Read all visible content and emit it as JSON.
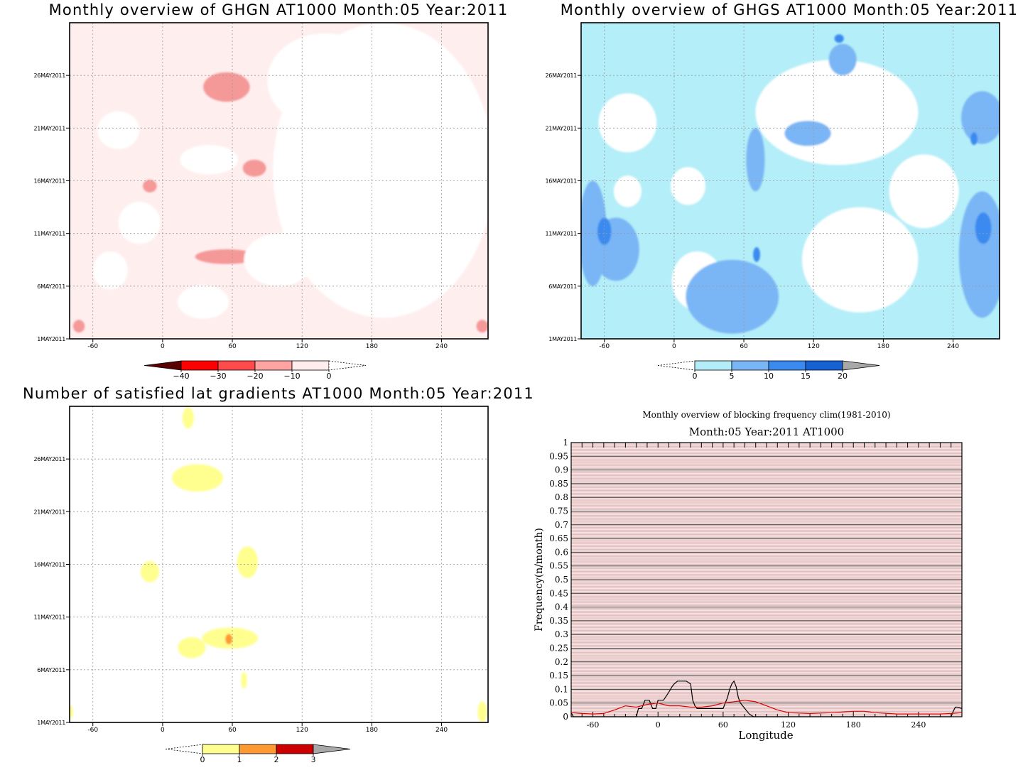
{
  "chart_data": [
    {
      "type": "heatmap",
      "title": "Monthly overview of GHGN AT1000 Month:05 Year:2011",
      "x_ticks": [
        "-60",
        "0",
        "60",
        "120",
        "180",
        "240"
      ],
      "x_tick_values": [
        -60,
        0,
        60,
        120,
        180,
        240
      ],
      "xlim": [
        -80,
        280
      ],
      "y_ticks": [
        "1MAY2011",
        "6MAY2011",
        "11MAY2011",
        "16MAY2011",
        "21MAY2011",
        "26MAY2011"
      ],
      "y_tick_days": [
        1,
        6,
        11,
        16,
        21,
        26
      ],
      "ylim": [
        1,
        31
      ],
      "grid": true,
      "colorbar": {
        "labels": [
          "-40",
          "-30",
          "-20",
          "-10",
          "0"
        ],
        "colors": [
          "#5a0000",
          "#ff0000",
          "#ff4b4b",
          "#ffa3a3",
          "#ffeded",
          "#ffffff"
        ]
      },
      "background": "#ffeeee",
      "blobs": [
        {
          "lon": 55,
          "day": 24.9,
          "rlon": 20,
          "rday": 1.4,
          "color": "#f59898"
        },
        {
          "lon": 79,
          "day": 17.2,
          "rlon": 10,
          "rday": 0.8,
          "color": "#f59898"
        },
        {
          "lon": -11,
          "day": 15.5,
          "rlon": 6,
          "rday": 0.6,
          "color": "#f59898"
        },
        {
          "lon": 55,
          "day": 8.8,
          "rlon": 27,
          "rday": 0.7,
          "color": "#f59898"
        },
        {
          "lon": -72,
          "day": 2.2,
          "rlon": 5,
          "rday": 0.6,
          "color": "#f59898"
        },
        {
          "lon": 275,
          "day": 2.2,
          "rlon": 5,
          "rday": 0.6,
          "color": "#f59898"
        },
        {
          "lon": -38,
          "day": 20.8,
          "rlon": 18,
          "rday": 1.8,
          "color": "#ffffff"
        },
        {
          "lon": 40,
          "day": 18.0,
          "rlon": 25,
          "rday": 1.4,
          "color": "#ffffff"
        },
        {
          "lon": -20,
          "day": 12.0,
          "rlon": 18,
          "rday": 2.0,
          "color": "#ffffff"
        },
        {
          "lon": 190,
          "day": 17.0,
          "rlon": 95,
          "rday": 14.0,
          "color": "#ffffff"
        },
        {
          "lon": 140,
          "day": 25.5,
          "rlon": 50,
          "rday": 4.5,
          "color": "#ffffff"
        },
        {
          "lon": 35,
          "day": 4.5,
          "rlon": 22,
          "rday": 1.6,
          "color": "#ffffff"
        },
        {
          "lon": -45,
          "day": 7.5,
          "rlon": 15,
          "rday": 1.8,
          "color": "#ffffff"
        },
        {
          "lon": 100,
          "day": 8.5,
          "rlon": 30,
          "rday": 2.5,
          "color": "#ffffff"
        }
      ]
    },
    {
      "type": "heatmap",
      "title": "Monthly overview of GHGS AT1000 Month:05 Year:2011",
      "x_ticks": [
        "-60",
        "0",
        "60",
        "120",
        "180",
        "240"
      ],
      "x_tick_values": [
        -60,
        0,
        60,
        120,
        180,
        240
      ],
      "xlim": [
        -80,
        280
      ],
      "y_ticks": [
        "1MAY2011",
        "6MAY2011",
        "11MAY2011",
        "16MAY2011",
        "21MAY2011",
        "26MAY2011"
      ],
      "y_tick_days": [
        1,
        6,
        11,
        16,
        21,
        26
      ],
      "ylim": [
        1,
        31
      ],
      "grid": true,
      "colorbar": {
        "labels": [
          "0",
          "5",
          "10",
          "15",
          "20"
        ],
        "colors": [
          "#ffffff",
          "#b3eef8",
          "#7ab6f5",
          "#3a8af0",
          "#1661d4",
          "#a8a8a8"
        ]
      },
      "background": "#b4eef8",
      "blobs": [
        {
          "lon": -40,
          "day": 21.5,
          "rlon": 25,
          "rday": 2.8,
          "color": "#ffffff"
        },
        {
          "lon": 12,
          "day": 15.5,
          "rlon": 15,
          "rday": 1.8,
          "color": "#ffffff"
        },
        {
          "lon": -40,
          "day": 15.0,
          "rlon": 12,
          "rday": 1.5,
          "color": "#ffffff"
        },
        {
          "lon": 20,
          "day": 6.5,
          "rlon": 22,
          "rday": 2.8,
          "color": "#ffffff"
        },
        {
          "lon": 140,
          "day": 22.5,
          "rlon": 70,
          "rday": 5.0,
          "color": "#ffffff"
        },
        {
          "lon": 160,
          "day": 8.5,
          "rlon": 50,
          "rday": 5.0,
          "color": "#ffffff"
        },
        {
          "lon": 215,
          "day": 15.0,
          "rlon": 30,
          "rday": 3.5,
          "color": "#ffffff"
        },
        {
          "lon": -70,
          "day": 11.0,
          "rlon": 12,
          "rday": 5.0,
          "color": "#7ab6f5"
        },
        {
          "lon": -50,
          "day": 9.5,
          "rlon": 20,
          "rday": 3.0,
          "color": "#7ab6f5"
        },
        {
          "lon": 50,
          "day": 5.0,
          "rlon": 40,
          "rday": 3.5,
          "color": "#7ab6f5"
        },
        {
          "lon": 70,
          "day": 18.0,
          "rlon": 8,
          "rday": 3.0,
          "color": "#7ab6f5"
        },
        {
          "lon": 115,
          "day": 20.5,
          "rlon": 20,
          "rday": 1.2,
          "color": "#7ab6f5"
        },
        {
          "lon": 145,
          "day": 27.5,
          "rlon": 12,
          "rday": 1.5,
          "color": "#7ab6f5"
        },
        {
          "lon": 265,
          "day": 9.0,
          "rlon": 20,
          "rday": 6.0,
          "color": "#7ab6f5"
        },
        {
          "lon": 265,
          "day": 22.0,
          "rlon": 18,
          "rday": 2.5,
          "color": "#7ab6f5"
        },
        {
          "lon": -60,
          "day": 11.2,
          "rlon": 6,
          "rday": 1.3,
          "color": "#3a8af0"
        },
        {
          "lon": 71,
          "day": 9.0,
          "rlon": 3,
          "rday": 0.7,
          "color": "#3a8af0"
        },
        {
          "lon": 266,
          "day": 11.5,
          "rlon": 7,
          "rday": 1.5,
          "color": "#3a8af0"
        },
        {
          "lon": 258,
          "day": 20.0,
          "rlon": 3,
          "rday": 0.6,
          "color": "#3a8af0"
        },
        {
          "lon": 142,
          "day": 29.5,
          "rlon": 4,
          "rday": 0.4,
          "color": "#3a8af0"
        }
      ]
    },
    {
      "type": "heatmap",
      "title": "Number of satisfied lat gradients AT1000 Month:05 Year:2011",
      "x_ticks": [
        "-60",
        "0",
        "60",
        "120",
        "180",
        "240"
      ],
      "x_tick_values": [
        -60,
        0,
        60,
        120,
        180,
        240
      ],
      "xlim": [
        -80,
        280
      ],
      "y_ticks": [
        "1MAY2011",
        "6MAY2011",
        "11MAY2011",
        "16MAY2011",
        "21MAY2011",
        "26MAY2011"
      ],
      "y_tick_days": [
        1,
        6,
        11,
        16,
        21,
        26
      ],
      "ylim": [
        1,
        31
      ],
      "grid": true,
      "colorbar": {
        "labels": [
          "0",
          "1",
          "2",
          "3"
        ],
        "colors": [
          "#ffffff",
          "#ffff90",
          "#ff9933",
          "#cc0000",
          "#a8a8a8"
        ]
      },
      "background": "#ffffff",
      "blobs": [
        {
          "lon": 22,
          "day": 29.9,
          "rlon": 5,
          "rday": 1.0,
          "color": "#ffff90"
        },
        {
          "lon": 30,
          "day": 24.2,
          "rlon": 22,
          "rday": 1.3,
          "color": "#ffff90"
        },
        {
          "lon": 73,
          "day": 16.2,
          "rlon": 9,
          "rday": 1.5,
          "color": "#ffff90"
        },
        {
          "lon": -11,
          "day": 15.3,
          "rlon": 8,
          "rday": 1.0,
          "color": "#ffff90"
        },
        {
          "lon": 58,
          "day": 9.0,
          "rlon": 24,
          "rday": 1.0,
          "color": "#ffff90"
        },
        {
          "lon": 25,
          "day": 8.1,
          "rlon": 12,
          "rday": 1.0,
          "color": "#ffff90"
        },
        {
          "lon": 70,
          "day": 5.0,
          "rlon": 2.5,
          "rday": 0.8,
          "color": "#ffff90"
        },
        {
          "lon": 275,
          "day": 2.0,
          "rlon": 4,
          "rday": 1.0,
          "color": "#ffff90"
        },
        {
          "lon": -79,
          "day": 2.0,
          "rlon": 2,
          "rday": 0.6,
          "color": "#ffff90"
        },
        {
          "lon": 57,
          "day": 8.9,
          "rlon": 3,
          "rday": 0.5,
          "color": "#ff9933"
        }
      ]
    },
    {
      "type": "line",
      "title": "Monthly overview of blocking frequency clim(1981-2010)",
      "subtitle": "Month:05 Year:2011  AT1000",
      "xlabel": "Longitude",
      "ylabel": "Frequency(n/month)",
      "xlim": [
        -80,
        280
      ],
      "ylim": [
        0,
        1
      ],
      "x_ticks": [
        "-60",
        "0",
        "60",
        "120",
        "180",
        "240"
      ],
      "x_tick_values": [
        -60,
        0,
        60,
        120,
        180,
        240
      ],
      "y_ticks": [
        "0",
        "0.05",
        "0.1",
        "0.15",
        "0.2",
        "0.25",
        "0.3",
        "0.35",
        "0.4",
        "0.45",
        "0.5",
        "0.55",
        "0.6",
        "0.65",
        "0.7",
        "0.75",
        "0.8",
        "0.85",
        "0.9",
        "0.95",
        "1"
      ],
      "background_lines": {
        "major_color": "#222222",
        "minor_color": "#c04040"
      },
      "series": [
        {
          "color": "#000000",
          "x": [
            -80,
            -78,
            -20,
            -18,
            -15,
            -12,
            -8,
            -5,
            -2,
            0,
            5,
            10,
            13,
            15,
            18,
            22,
            26,
            30,
            32,
            34,
            36,
            40,
            45,
            50,
            55,
            60,
            62,
            64,
            66,
            68,
            70,
            72,
            74,
            76,
            78,
            80,
            84,
            88,
            200,
            270,
            272,
            274,
            276,
            280
          ],
          "y": [
            0.015,
            0,
            0,
            0.03,
            0.03,
            0.06,
            0.06,
            0.03,
            0.03,
            0.06,
            0.06,
            0.09,
            0.11,
            0.12,
            0.13,
            0.13,
            0.13,
            0.12,
            0.06,
            0.04,
            0.03,
            0.03,
            0.03,
            0.03,
            0.03,
            0.03,
            0.05,
            0.07,
            0.1,
            0.12,
            0.13,
            0.11,
            0.07,
            0.05,
            0.04,
            0.03,
            0.01,
            0,
            0,
            0,
            0.02,
            0.035,
            0.035,
            0.03
          ]
        },
        {
          "color": "#e00000",
          "x": [
            -80,
            -70,
            -60,
            -50,
            -40,
            -30,
            -20,
            -10,
            0,
            10,
            20,
            30,
            40,
            50,
            60,
            70,
            80,
            90,
            100,
            110,
            120,
            140,
            160,
            180,
            190,
            200,
            220,
            240,
            260,
            270,
            280
          ],
          "y": [
            0.015,
            0.012,
            0.01,
            0.012,
            0.025,
            0.04,
            0.035,
            0.045,
            0.05,
            0.04,
            0.04,
            0.035,
            0.035,
            0.04,
            0.05,
            0.055,
            0.06,
            0.055,
            0.04,
            0.025,
            0.015,
            0.012,
            0.015,
            0.02,
            0.02,
            0.015,
            0.01,
            0.01,
            0.01,
            0.012,
            0.015
          ]
        }
      ]
    }
  ]
}
